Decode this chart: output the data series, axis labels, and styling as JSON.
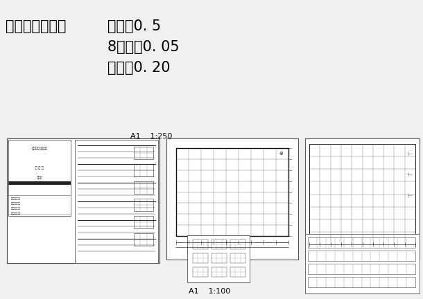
{
  "bg_color": "#f0f0f0",
  "title_text1": "打印线型设置：",
  "title_text2": "红色为0. 5",
  "title_text3": "8号色为0. 05",
  "title_text4": "其余为0. 20",
  "label_a1_250": "A1    1:250",
  "label_a1_100": "A1    1:100",
  "title_font_size": 15,
  "subtitle_font_size": 13
}
